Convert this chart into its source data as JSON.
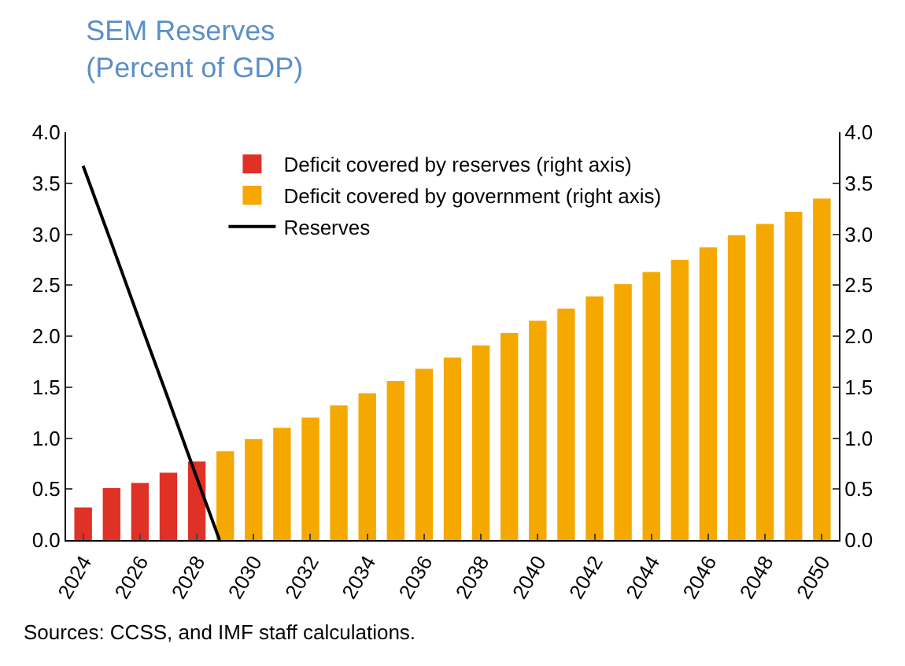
{
  "chart_data": {
    "type": "bar",
    "title": "SEM Reserves\n(Percent of GDP)",
    "legend": "top left",
    "grid": false,
    "x": [
      2024,
      2025,
      2026,
      2027,
      2028,
      2029,
      2030,
      2031,
      2032,
      2033,
      2034,
      2035,
      2036,
      2037,
      2038,
      2039,
      2040,
      2041,
      2042,
      2043,
      2044,
      2045,
      2046,
      2047,
      2048,
      2049,
      2050
    ],
    "series": [
      {
        "name": "Deficit covered by reserves (right axis)",
        "color": "#e03127",
        "axis": "y2",
        "values": [
          0.32,
          0.51,
          0.56,
          0.66,
          0.77,
          null,
          null,
          null,
          null,
          null,
          null,
          null,
          null,
          null,
          null,
          null,
          null,
          null,
          null,
          null,
          null,
          null,
          null,
          null,
          null,
          null,
          null
        ]
      },
      {
        "name": "Deficit covered by government (right axis)",
        "color": "#f5a800",
        "axis": "y2",
        "values": [
          null,
          null,
          null,
          null,
          null,
          0.87,
          0.99,
          1.1,
          1.2,
          1.32,
          1.44,
          1.56,
          1.68,
          1.79,
          1.91,
          2.03,
          2.15,
          2.27,
          2.39,
          2.51,
          2.63,
          2.75,
          2.87,
          2.99,
          3.1,
          3.22,
          3.35
        ]
      },
      {
        "name": "Reserves",
        "type": "line",
        "color": "#000000",
        "x": [
          2024,
          2025,
          2026,
          2027,
          2028,
          2028.8
        ],
        "values": [
          3.67,
          2.91,
          2.14,
          1.38,
          0.61,
          0
        ]
      }
    ],
    "xlim": [
      2023.4,
      2050.6
    ],
    "xticks": [
      2024,
      2026,
      2028,
      2030,
      2032,
      2034,
      2036,
      2038,
      2040,
      2042,
      2044,
      2046,
      2048,
      2050
    ],
    "ylim": [
      0,
      4
    ],
    "yticks": [
      {
        "value": 0,
        "label": "0.0"
      },
      {
        "value": 0.5,
        "label": "0.5"
      },
      {
        "value": 1,
        "label": "1.0"
      },
      {
        "value": 1.5,
        "label": "1.5"
      },
      {
        "value": 2,
        "label": "2.0"
      },
      {
        "value": 2.5,
        "label": "2.5"
      },
      {
        "value": 3,
        "label": "3.0"
      },
      {
        "value": 3.5,
        "label": "3.5"
      },
      {
        "value": 4,
        "label": "4.0"
      }
    ],
    "y2lim": [
      0,
      4
    ],
    "y2ticks": [
      {
        "value": 0,
        "label": "0.0"
      },
      {
        "value": 0.5,
        "label": "0.5"
      },
      {
        "value": 1,
        "label": "1.0"
      },
      {
        "value": 1.5,
        "label": "1.5"
      },
      {
        "value": 2,
        "label": "2.0"
      },
      {
        "value": 2.5,
        "label": "2.5"
      },
      {
        "value": 3,
        "label": "3.0"
      },
      {
        "value": 3.5,
        "label": "3.5"
      },
      {
        "value": 4,
        "label": "4.0"
      }
    ],
    "annotations": [
      "Sources: CCSS, and IMF staff calculations."
    ]
  }
}
